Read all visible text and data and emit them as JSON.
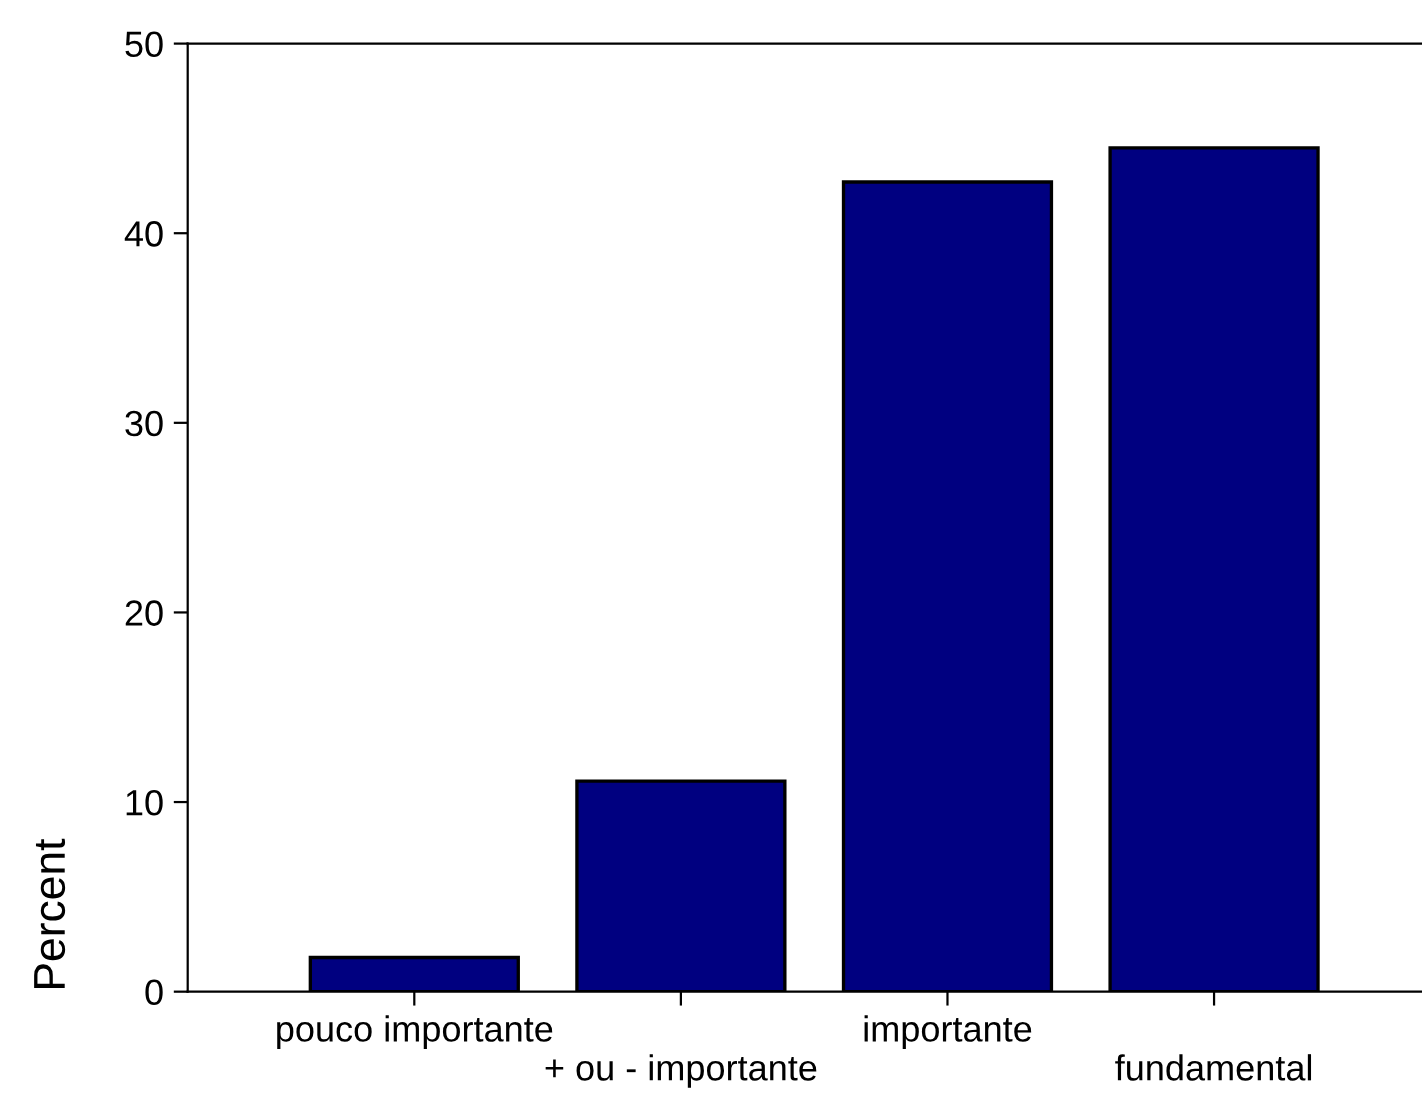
{
  "chart_data": {
    "type": "bar",
    "ylabel": "Percent",
    "categories": [
      "pouco importante",
      "+ ou - importante",
      "importante",
      "fundamental"
    ],
    "values": [
      1.8,
      11.1,
      42.7,
      44.5
    ],
    "color": "#000080",
    "ylim": [
      0,
      50
    ],
    "yticks": [
      0,
      10,
      20,
      30,
      40,
      50
    ],
    "grid": false
  }
}
